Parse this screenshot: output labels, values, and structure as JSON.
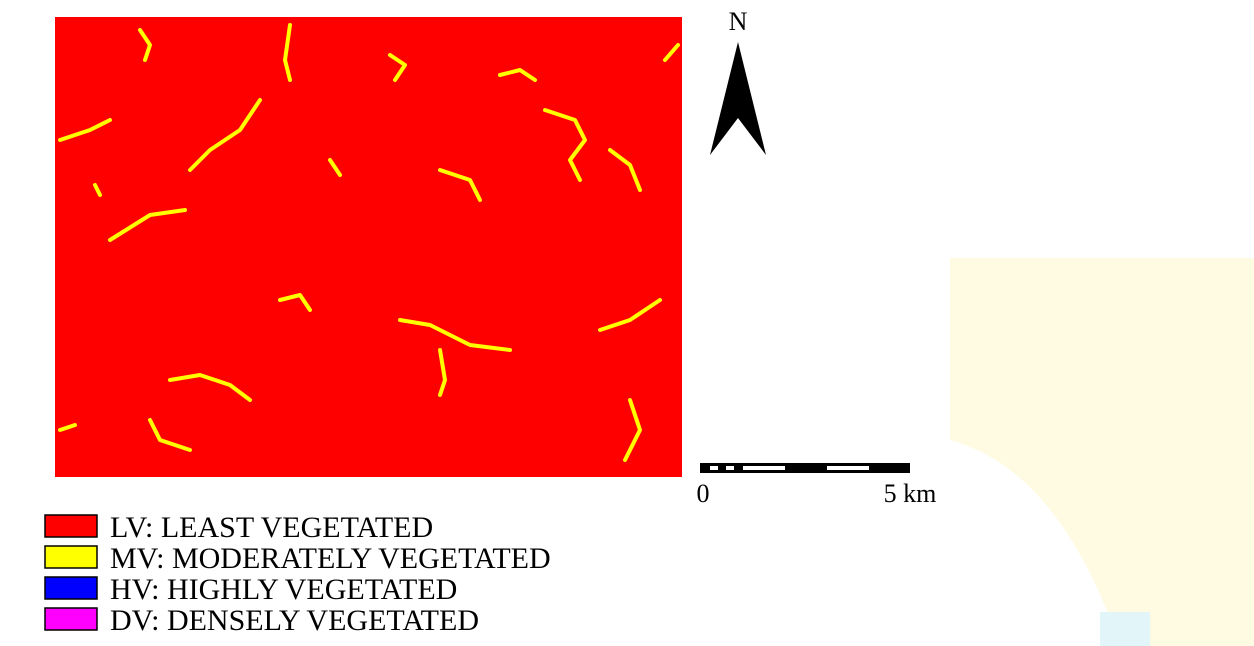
{
  "north_label": "N",
  "scale_bar": {
    "start_label": "0",
    "end_label": "5 km"
  },
  "legend": [
    {
      "label": "LV: LEAST VEGETATED",
      "color": "#ff0000"
    },
    {
      "label": "MV: MODERATELY VEGETATED",
      "color": "#ffff00"
    },
    {
      "label": "HV: HIGHLY VEGETATED",
      "color": "#0000ff"
    },
    {
      "label": "DV: DENSELY VEGETATED",
      "color": "#ff00ff"
    }
  ]
}
